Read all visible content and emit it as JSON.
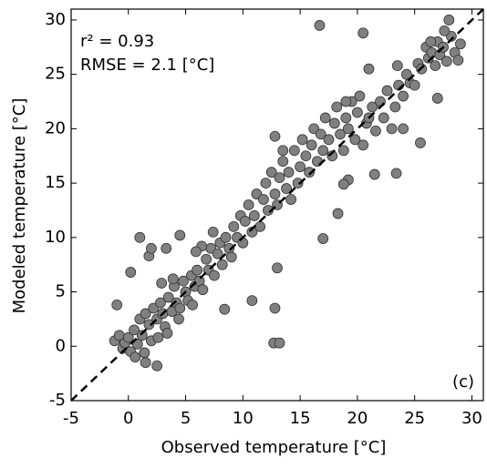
{
  "chart_data": {
    "type": "scatter",
    "xlabel": "Observed temperature [°C]",
    "ylabel": "Modeled temperature [°C]",
    "annotations": [
      "r² = 0.93",
      "RMSE = 2.1 [°C]"
    ],
    "panel_label": "(c)",
    "xlim": [
      -5,
      31
    ],
    "ylim": [
      -5,
      31
    ],
    "xticks": [
      -5,
      0,
      5,
      10,
      15,
      20,
      25,
      30
    ],
    "yticks": [
      -5,
      0,
      5,
      10,
      15,
      20,
      25,
      30
    ],
    "one_to_one_line": true,
    "color": "#808080",
    "x": [
      -1.2,
      -0.8,
      -0.5,
      -0.3,
      0,
      0.2,
      0.5,
      0.8,
      1,
      1.2,
      1.5,
      1.8,
      2,
      2.2,
      2.5,
      2.8,
      3,
      3.2,
      3.5,
      3.8,
      4,
      4.2,
      4.5,
      4.8,
      5,
      5.2,
      5.5,
      5.8,
      6,
      6.2,
      6.5,
      6.8,
      7,
      7.2,
      7.5,
      7.8,
      8,
      8.2,
      8.5,
      8.8,
      9,
      9.2,
      9.5,
      9.8,
      10,
      10.2,
      10.5,
      10.8,
      11,
      11.2,
      11.5,
      11.8,
      12,
      12.2,
      12.5,
      12.8,
      13,
      13.2,
      13.5,
      13.8,
      14,
      14.2,
      14.5,
      14.8,
      15,
      15.2,
      15.5,
      15.8,
      16,
      16.2,
      16.5,
      16.8,
      17,
      17.2,
      17.5,
      17.8,
      18,
      18.2,
      18.5,
      18.8,
      19,
      19.2,
      19.5,
      19.8,
      20,
      20.2,
      20.5,
      20.8,
      21,
      21.3,
      21.6,
      22,
      22.3,
      22.6,
      23,
      23.3,
      23.6,
      24,
      24.3,
      24.6,
      25,
      25.3,
      25.6,
      26,
      26.2,
      26.5,
      26.8,
      27,
      27.2,
      27.5,
      27.8,
      28,
      28.2,
      28.5,
      26.4,
      27.6,
      28.8,
      29,
      2.6,
      3.4,
      1.4,
      0.6,
      4.4,
      5.6,
      3.9,
      2.9,
      6.4,
      7.4,
      5.9,
      16.7,
      20.5,
      21,
      17,
      18.3,
      12.7,
      13.2,
      12.8,
      10.8,
      13,
      8.4,
      1,
      -1,
      23.4,
      25.5,
      21.5,
      19.2,
      18.8,
      27,
      24,
      19,
      23.5,
      2.5,
      1.5,
      0.2,
      1.8,
      3.3,
      4.5,
      2,
      13.5,
      12.8
    ],
    "y": [
      0.5,
      1,
      -0.2,
      0.3,
      0.8,
      -0.5,
      1.5,
      0.2,
      2.5,
      1,
      3,
      2,
      0.5,
      3.5,
      2.5,
      4,
      3,
      1.8,
      4.5,
      3.2,
      5.5,
      4,
      3.5,
      6,
      5,
      4.2,
      6.5,
      5.5,
      7,
      6,
      5.2,
      8,
      7,
      9,
      6.5,
      8.5,
      9.5,
      7.5,
      10,
      9,
      8.2,
      11,
      10,
      12,
      9.5,
      11.5,
      13,
      10.5,
      12,
      14,
      11,
      13.5,
      15,
      12.5,
      16,
      14,
      13,
      15.5,
      17,
      14.5,
      16,
      13.5,
      18,
      15,
      16.5,
      19,
      17.5,
      16,
      18.5,
      20,
      17,
      19.5,
      18,
      21,
      19,
      17.5,
      20.5,
      22,
      19.5,
      18,
      21,
      20,
      22.5,
      19,
      21.5,
      23,
      18.5,
      20.5,
      21,
      22,
      19.8,
      22.5,
      21,
      23.5,
      20,
      22,
      24,
      23,
      25,
      24.2,
      24,
      26,
      25.5,
      27.5,
      26.5,
      27,
      25.8,
      28,
      26.8,
      27.5,
      26.2,
      30,
      28.5,
      27,
      28,
      29,
      26.3,
      27.8,
      0.8,
      1.2,
      -0.6,
      -1,
      2.5,
      3.8,
      6.2,
      5.8,
      9.2,
      10.5,
      8.7,
      29.5,
      28.8,
      25.5,
      9.9,
      12.2,
      0.3,
      0.3,
      3.5,
      4.2,
      7.2,
      3.4,
      10,
      3.8,
      15.9,
      18.7,
      15.8,
      15.3,
      14.9,
      22.8,
      20,
      22.5,
      25.8,
      -1.8,
      -1.5,
      6.8,
      8.3,
      9,
      10.2,
      9,
      18,
      19.3
    ]
  }
}
